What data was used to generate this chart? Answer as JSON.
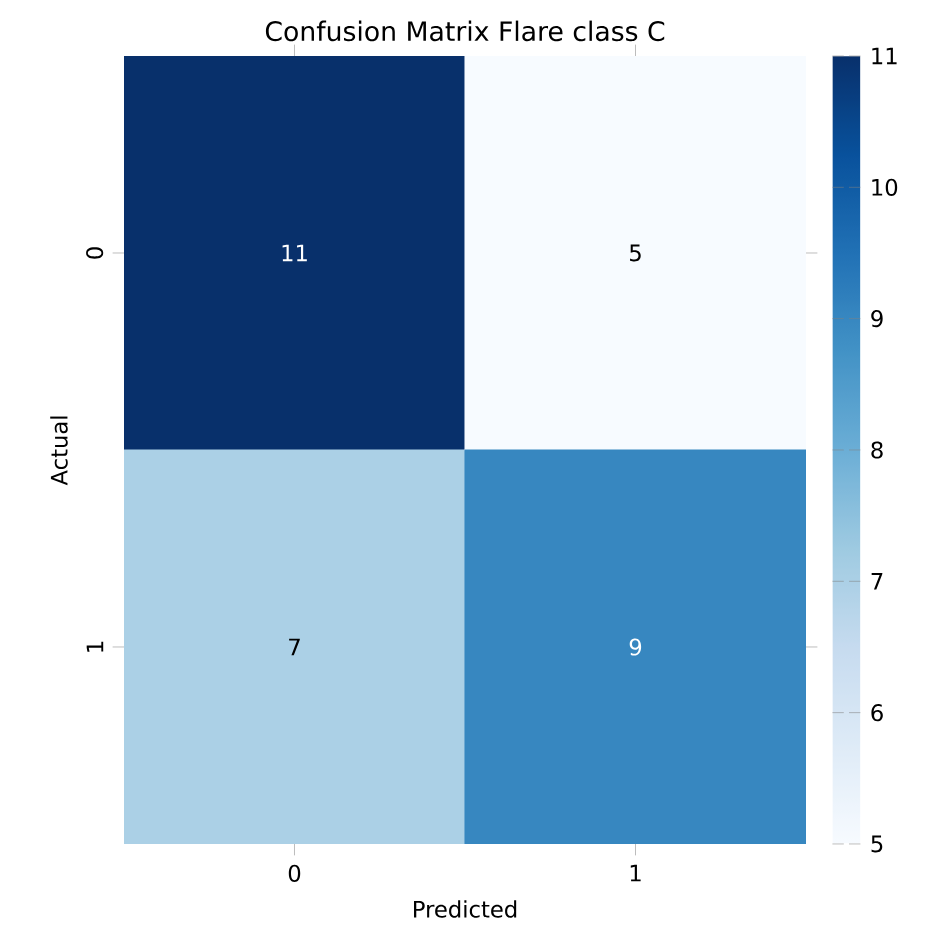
{
  "chart_data": {
    "type": "heatmap",
    "title": "Confusion Matrix Flare class C",
    "xlabel": "Predicted",
    "ylabel": "Actual",
    "categories": [
      "0",
      "1"
    ],
    "y_categories": [
      "0",
      "1"
    ],
    "cells": [
      [
        11,
        5
      ],
      [
        7,
        9
      ]
    ],
    "clim": [
      5,
      11
    ],
    "cticks": [
      5,
      6,
      7,
      8,
      9,
      10,
      11
    ],
    "data_labels": true
  }
}
